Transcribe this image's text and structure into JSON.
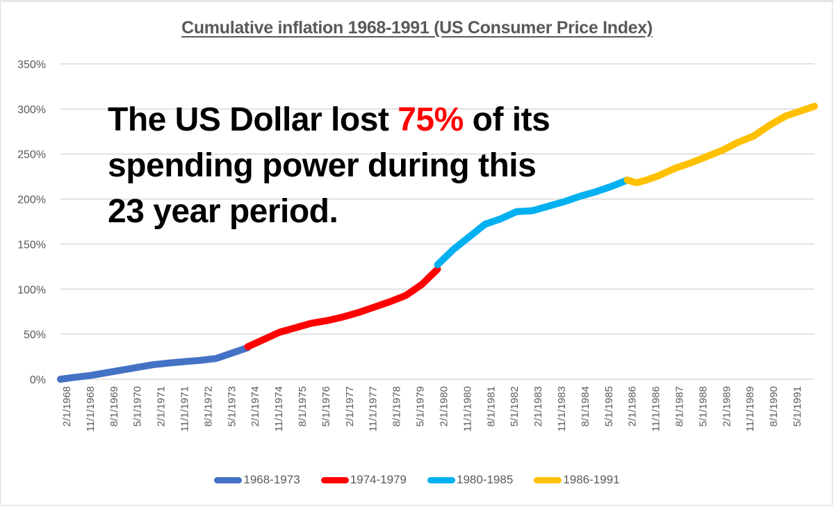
{
  "chart_data": {
    "type": "line",
    "title": "Cumulative inflation 1968-1991 (US Consumer Price Index)",
    "xlabel": "",
    "ylabel": "",
    "ylim": [
      0,
      3.5
    ],
    "yticks": [
      0,
      0.5,
      1.0,
      1.5,
      2.0,
      2.5,
      3.0,
      3.5
    ],
    "ytick_labels": [
      "0%",
      "50%",
      "100%",
      "150%",
      "200%",
      "250%",
      "300%",
      "350%"
    ],
    "x_tick_labels": [
      "2/1/1968",
      "11/1/1968",
      "8/1/1969",
      "5/1/1970",
      "2/1/1971",
      "11/1/1971",
      "8/1/1972",
      "5/1/1973",
      "2/1/1974",
      "11/1/1974",
      "8/1/1975",
      "5/1/1976",
      "2/1/1977",
      "11/1/1977",
      "8/1/1978",
      "5/1/1979",
      "2/1/1980",
      "11/1/1980",
      "8/1/1981",
      "5/1/1982",
      "2/1/1983",
      "11/1/1983",
      "8/1/1984",
      "5/1/1985",
      "2/1/1986",
      "11/1/1986",
      "8/1/1987",
      "5/1/1988",
      "2/1/1989",
      "11/1/1989",
      "8/1/1990",
      "5/1/1991"
    ],
    "x_range": [
      1968.08,
      1991.92
    ],
    "grid": true,
    "legend_position": "bottom",
    "series": [
      {
        "name": "1968-1973",
        "color": "#4472c4",
        "x": [
          1968.08,
          1968.5,
          1969.0,
          1969.5,
          1970.0,
          1970.5,
          1971.0,
          1971.5,
          1972.0,
          1972.5,
          1973.0,
          1973.5,
          1974.0
        ],
        "values": [
          0.0,
          0.02,
          0.04,
          0.07,
          0.1,
          0.13,
          0.16,
          0.18,
          0.195,
          0.21,
          0.23,
          0.29,
          0.35
        ]
      },
      {
        "name": "1974-1979",
        "color": "#ff0000",
        "x": [
          1974.0,
          1974.5,
          1975.0,
          1975.5,
          1976.0,
          1976.5,
          1977.0,
          1977.5,
          1978.0,
          1978.5,
          1979.0,
          1979.5,
          1980.0
        ],
        "values": [
          0.36,
          0.44,
          0.52,
          0.57,
          0.62,
          0.65,
          0.69,
          0.74,
          0.8,
          0.86,
          0.93,
          1.05,
          1.22
        ]
      },
      {
        "name": "1980-1985",
        "color": "#00b0f0",
        "x": [
          1980.0,
          1980.5,
          1981.0,
          1981.5,
          1982.0,
          1982.5,
          1983.0,
          1983.5,
          1984.0,
          1984.5,
          1985.0,
          1985.5,
          1986.0
        ],
        "values": [
          1.27,
          1.44,
          1.58,
          1.72,
          1.78,
          1.86,
          1.87,
          1.92,
          1.97,
          2.03,
          2.08,
          2.14,
          2.21
        ]
      },
      {
        "name": "1986-1991",
        "color": "#ffc000",
        "x": [
          1986.0,
          1986.3,
          1986.6,
          1987.0,
          1987.5,
          1988.0,
          1988.5,
          1989.0,
          1989.5,
          1990.0,
          1990.5,
          1991.0,
          1991.5,
          1991.92
        ],
        "values": [
          2.21,
          2.18,
          2.21,
          2.26,
          2.34,
          2.4,
          2.47,
          2.54,
          2.63,
          2.7,
          2.82,
          2.92,
          2.98,
          3.03
        ]
      }
    ]
  },
  "annotation": {
    "line1_pre": "The US Dollar lost ",
    "line1_highlight": "75%",
    "line1_post": " of its",
    "line2": "spending power during this",
    "line3": "23 year period.",
    "highlight_color": "#ff0000"
  }
}
